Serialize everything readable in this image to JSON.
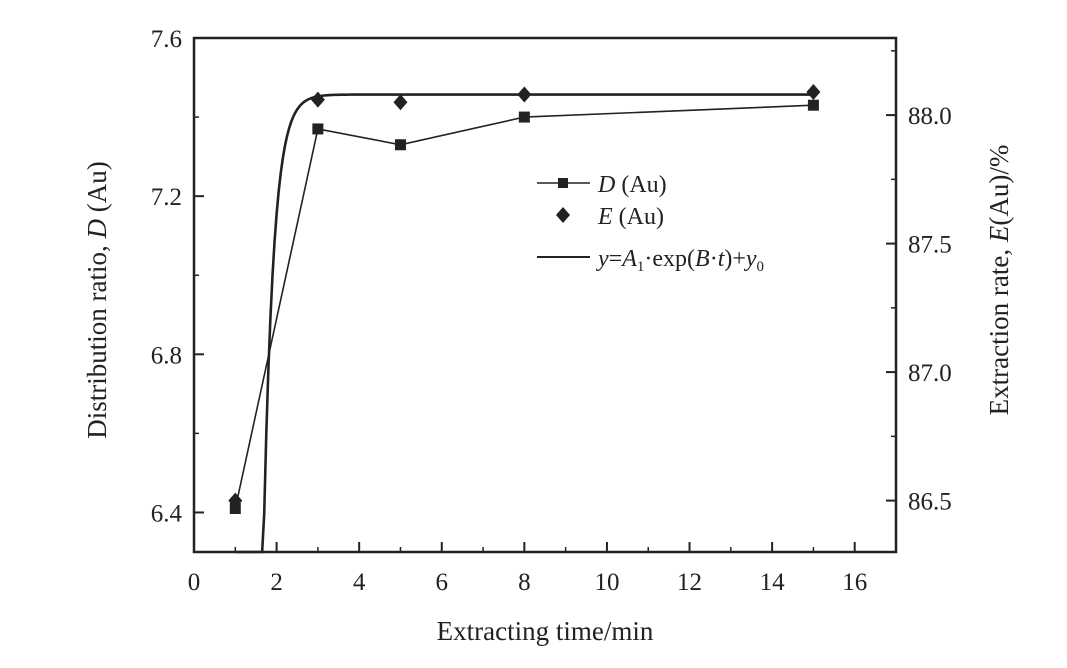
{
  "chart_data": {
    "type": "line",
    "title": "",
    "xlabel": "Extracting time/min",
    "ylabel_left": {
      "text": "Distribution ratio, ",
      "italic": "D",
      "suffix": " (Au)"
    },
    "ylabel_right": {
      "text": "Extraction rate, ",
      "italic": "E",
      "suffix": "(Au)/%"
    },
    "xlim": [
      0,
      17
    ],
    "ylim_left": [
      6.3,
      7.6
    ],
    "ylim_right": [
      86.3,
      88.3
    ],
    "x_ticks": [
      "0",
      "2",
      "4",
      "6",
      "8",
      "10",
      "12",
      "14",
      "16"
    ],
    "y_left_ticks": [
      "6.4",
      "6.8",
      "7.2",
      "7.6"
    ],
    "y_right_ticks": [
      "86.5",
      "87.0",
      "87.5",
      "88.0"
    ],
    "grid": false,
    "legend_position": "center-right",
    "legend": [
      {
        "italic": "D",
        "text": " (Au)",
        "marker": "square-line"
      },
      {
        "italic": "E",
        "text": " (Au)",
        "marker": "diamond"
      },
      {
        "formula": "y=A1·exp(B·t)+y0",
        "marker": "line"
      }
    ],
    "series": [
      {
        "name": "D (Au)",
        "axis": "left",
        "style": "line+square",
        "x": [
          1,
          3,
          5,
          8,
          15
        ],
        "values": [
          6.41,
          7.37,
          7.33,
          7.4,
          7.43
        ]
      },
      {
        "name": "E (Au)",
        "axis": "right",
        "style": "diamond",
        "x": [
          1,
          3,
          5,
          8,
          15
        ],
        "values": [
          86.5,
          88.06,
          88.05,
          88.08,
          88.09
        ]
      },
      {
        "name": "y=A1·exp(B·t)+y0",
        "axis": "right",
        "style": "curve",
        "fit": {
          "A1": -1990,
          "B": -4.18,
          "y0": 88.08
        }
      }
    ],
    "colors": {
      "ink": "#222222",
      "background": "#ffffff"
    }
  }
}
